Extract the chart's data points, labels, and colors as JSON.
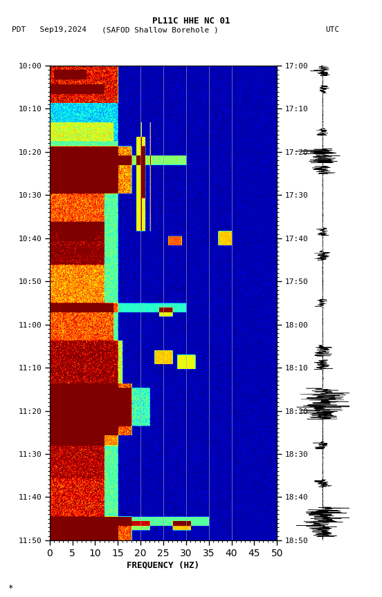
{
  "title_line1": "PL11C HHE NC 01",
  "title_line2_left": "PDT   Sep19,2024",
  "title_line2_center": "(SAFOD Shallow Borehole )",
  "title_line2_right": "UTC",
  "xlabel": "FREQUENCY (HZ)",
  "freq_min": 0,
  "freq_max": 50,
  "freq_ticks": [
    0,
    5,
    10,
    15,
    20,
    25,
    30,
    35,
    40,
    45,
    50
  ],
  "left_times": [
    "10:00",
    "10:10",
    "10:20",
    "10:30",
    "10:40",
    "10:50",
    "11:00",
    "11:10",
    "11:20",
    "11:30",
    "11:40",
    "11:50"
  ],
  "right_times": [
    "17:00",
    "17:10",
    "17:20",
    "17:30",
    "17:40",
    "17:50",
    "18:00",
    "18:10",
    "18:20",
    "18:30",
    "18:40",
    "18:50"
  ],
  "n_time_steps": 660,
  "n_freq_steps": 500,
  "vert_line_freqs": [
    20,
    25,
    30,
    35,
    40
  ],
  "fig_width": 5.52,
  "fig_height": 8.64,
  "dpi": 100
}
